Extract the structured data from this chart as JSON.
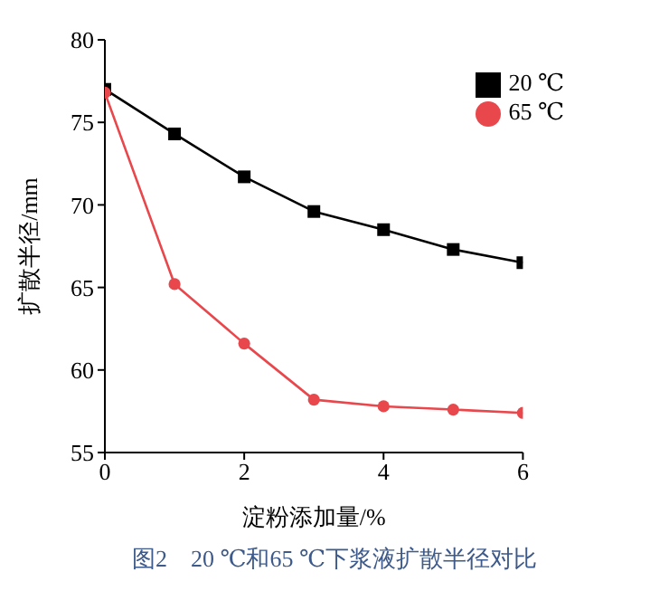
{
  "chart_data": {
    "type": "line",
    "xlabel": "淀粉添加量/%",
    "ylabel": "扩散半径/mm",
    "x": [
      0,
      1,
      2,
      3,
      4,
      5,
      6
    ],
    "xlim": [
      0,
      6
    ],
    "xticks": [
      0,
      2,
      4,
      6
    ],
    "ylim": [
      55,
      80
    ],
    "yticks": [
      55,
      60,
      65,
      70,
      75,
      80
    ],
    "grid": false,
    "legend": "top right",
    "line_style": "solid",
    "annotations": [
      "图2　20 ℃和65 ℃下浆液扩散半径对比"
    ],
    "series": [
      {
        "name": "20 ℃",
        "color": "#000000",
        "marker": "square",
        "values": [
          77.0,
          74.3,
          71.7,
          69.6,
          68.5,
          67.3,
          66.5
        ]
      },
      {
        "name": "65 ℃",
        "color": "#e8474c",
        "marker": "circle",
        "values": [
          76.8,
          65.2,
          61.6,
          58.2,
          57.8,
          57.6,
          57.4
        ]
      }
    ]
  }
}
